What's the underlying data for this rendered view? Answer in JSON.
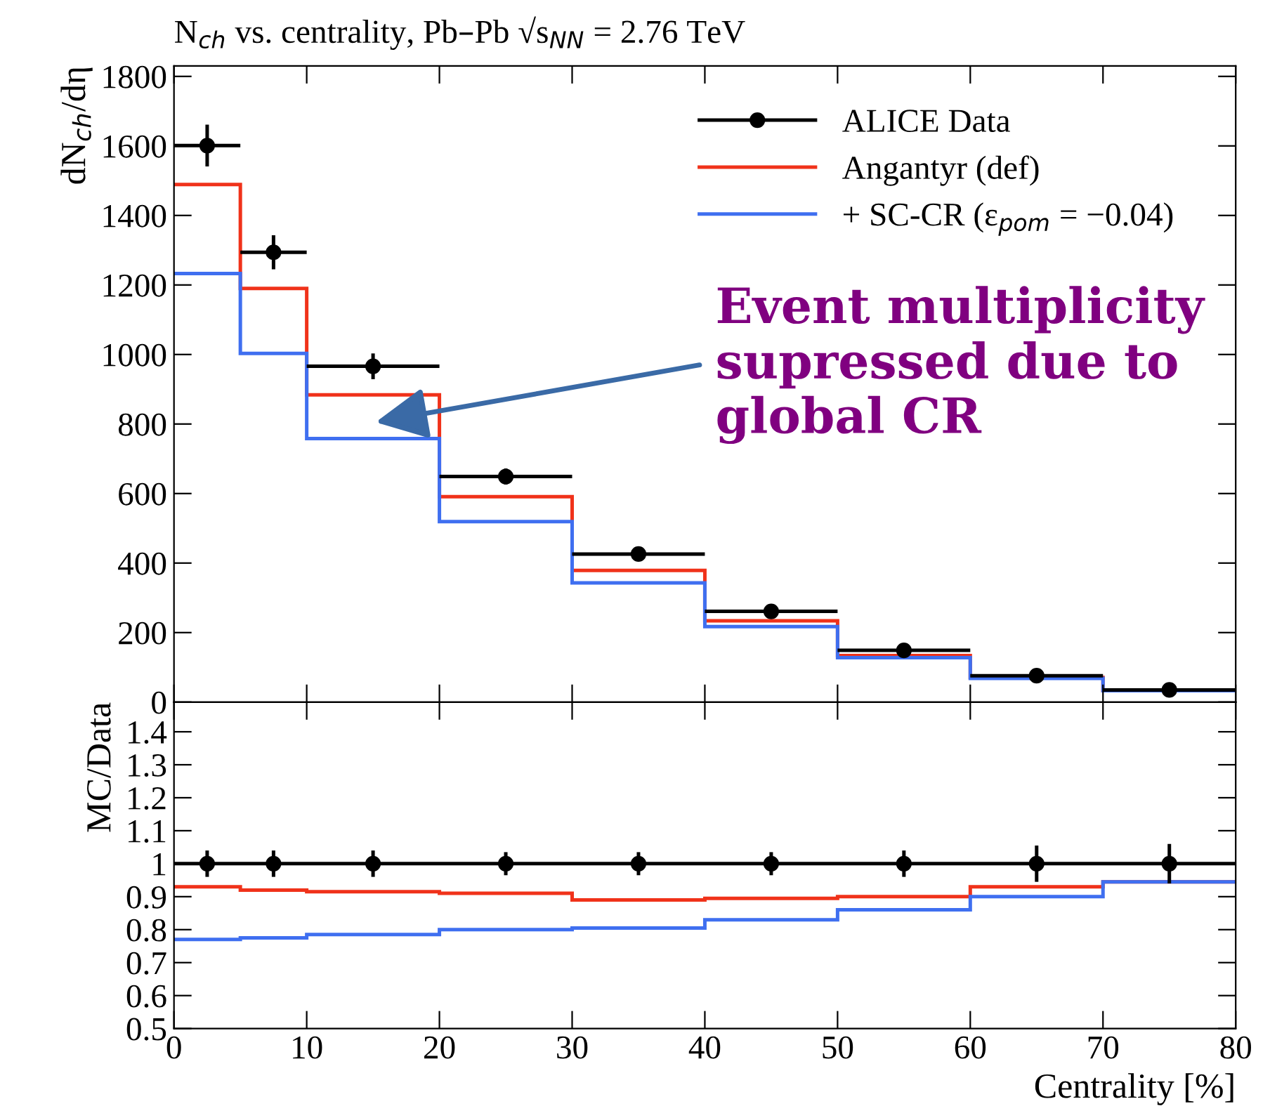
{
  "chart_data": [
    {
      "type": "histogram",
      "title": "N$_{ch}$ vs. centrality, Pb–Pb √s$_{NN}$ = 2.76 TeV",
      "ylabel": "dN$_{ch}$/dη",
      "bins": [
        0,
        5,
        10,
        20,
        30,
        40,
        50,
        60,
        70,
        80
      ],
      "series": [
        {
          "name": "ALICE Data",
          "type": "scatter",
          "color": "#000000",
          "marker": "circle",
          "x": [
            2.5,
            7.5,
            15,
            25,
            35,
            45,
            55,
            65,
            75
          ],
          "values": [
            1601,
            1294,
            966,
            649,
            426,
            261,
            149,
            76,
            35
          ],
          "errors": [
            60,
            49,
            37,
            23,
            15,
            9,
            6,
            4,
            2
          ],
          "xerrors": [
            2.5,
            2.5,
            5,
            5,
            5,
            5,
            5,
            5,
            5
          ]
        },
        {
          "name": "Angantyr (def)",
          "color": "#f0321a",
          "values": [
            1489,
            1190,
            884,
            591,
            379,
            234,
            134,
            71,
            33
          ]
        },
        {
          "name": "+ SC-CR (ε$_{pom}$ = −0.04)",
          "color": "#3f6ff0",
          "values": [
            1233,
            1003,
            758,
            519,
            343,
            217,
            128,
            68,
            33
          ]
        }
      ],
      "xlim": [
        0,
        80
      ],
      "xticks": [
        0,
        10,
        20,
        30,
        40,
        50,
        60,
        70,
        80
      ],
      "ylim": [
        0,
        1830
      ],
      "yticks": [
        0,
        200,
        400,
        600,
        800,
        1000,
        1200,
        1400,
        1600,
        1800
      ],
      "tick_labels": "y",
      "legend": "top right",
      "grid": false,
      "annotations": [
        "Event multiplicity supressed due to global CR"
      ]
    },
    {
      "type": "histogram",
      "xlabel": "Centrality [%]",
      "ylabel": "MC/Data",
      "bins": [
        0,
        5,
        10,
        20,
        30,
        40,
        50,
        60,
        70,
        80
      ],
      "series": [
        {
          "type": "scatter",
          "color": "#000000",
          "marker": "circle",
          "x": [
            2.5,
            7.5,
            15,
            25,
            35,
            45,
            55,
            65,
            75
          ],
          "values": [
            1,
            1,
            1,
            1,
            1,
            1,
            1,
            1,
            1
          ],
          "errors": [
            0.04,
            0.04,
            0.04,
            0.035,
            0.035,
            0.035,
            0.04,
            0.055,
            0.06
          ]
        },
        {
          "color": "#f0321a",
          "values": [
            0.93,
            0.92,
            0.915,
            0.91,
            0.89,
            0.895,
            0.9,
            0.93,
            0.945
          ]
        },
        {
          "color": "#3f6ff0",
          "values": [
            0.77,
            0.775,
            0.785,
            0.8,
            0.805,
            0.83,
            0.86,
            0.9,
            0.945
          ]
        }
      ],
      "ref_lines": [
        {
          "axis": "y",
          "value": 1,
          "color": "#000000"
        }
      ],
      "xlim": [
        0,
        80
      ],
      "xticks": [
        0,
        10,
        20,
        30,
        40,
        50,
        60,
        70,
        80
      ],
      "ylim": [
        0.5,
        1.49
      ],
      "yticks": [
        0.5,
        0.6,
        0.7,
        0.8,
        0.9,
        {
          "value": 1,
          "label": "1"
        },
        1.1,
        1.2,
        1.3,
        1.4
      ],
      "grid": false
    }
  ]
}
